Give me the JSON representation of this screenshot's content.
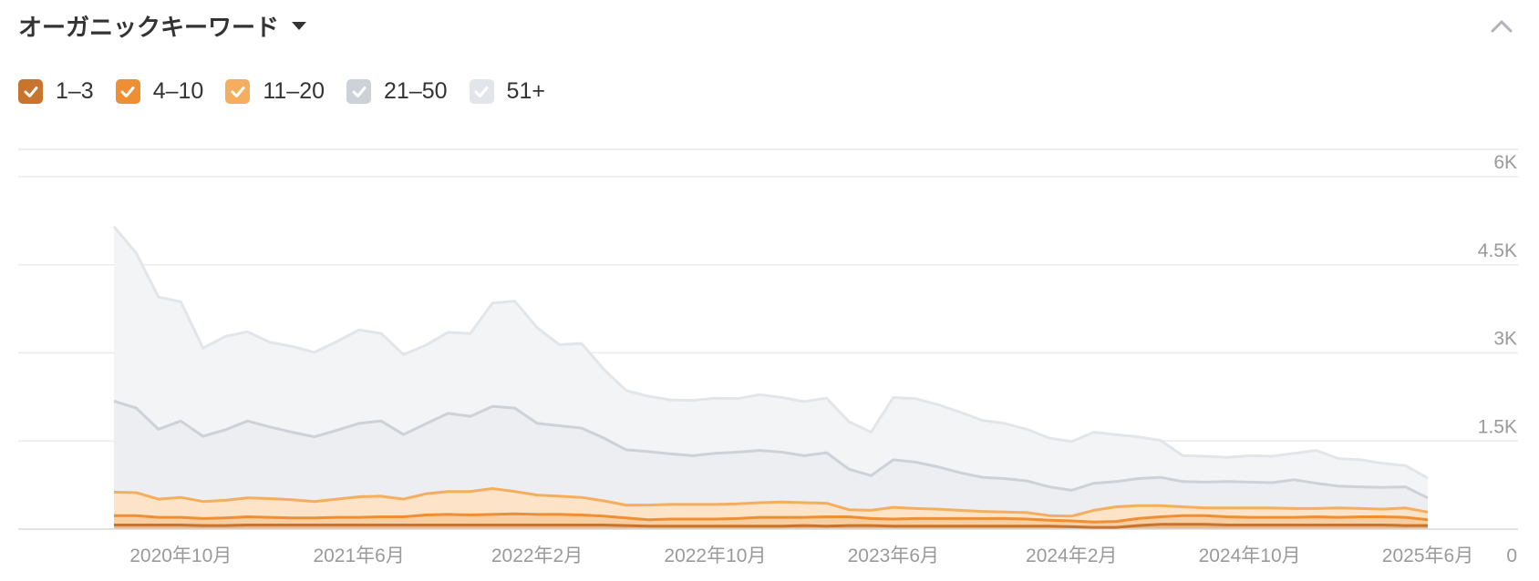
{
  "header": {
    "title": "オーガニックキーワード",
    "dropdown_icon": "caret-down-icon",
    "collapse_icon": "chevron-up-icon"
  },
  "legend": [
    {
      "label": "1–3",
      "color": "#c8732e",
      "checked": true
    },
    {
      "label": "4–10",
      "color": "#ee8f33",
      "checked": true
    },
    {
      "label": "11–20",
      "color": "#f5ae5e",
      "checked": true
    },
    {
      "label": "21–50",
      "color": "#cdd2d8",
      "checked": true
    },
    {
      "label": "51+",
      "color": "#e2e5e9",
      "checked": true
    }
  ],
  "chart_data": {
    "type": "area",
    "stacked": true,
    "x": [
      "2020-07",
      "2020-08",
      "2020-09",
      "2020-10",
      "2020-11",
      "2020-12",
      "2021-01",
      "2021-02",
      "2021-03",
      "2021-04",
      "2021-05",
      "2021-06",
      "2021-07",
      "2021-08",
      "2021-09",
      "2021-10",
      "2021-11",
      "2021-12",
      "2022-01",
      "2022-02",
      "2022-03",
      "2022-04",
      "2022-05",
      "2022-06",
      "2022-07",
      "2022-08",
      "2022-09",
      "2022-10",
      "2022-11",
      "2022-12",
      "2023-01",
      "2023-02",
      "2023-03",
      "2023-04",
      "2023-05",
      "2023-06",
      "2023-07",
      "2023-08",
      "2023-09",
      "2023-10",
      "2023-11",
      "2023-12",
      "2024-01",
      "2024-02",
      "2024-03",
      "2024-04",
      "2024-05",
      "2024-06",
      "2024-07",
      "2024-08",
      "2024-09",
      "2024-10",
      "2024-11",
      "2024-12",
      "2025-01",
      "2025-02",
      "2025-03",
      "2025-04",
      "2025-05",
      "2025-06"
    ],
    "x_tick_labels": [
      {
        "x": "2020-10",
        "label": "2020年10月"
      },
      {
        "x": "2021-06",
        "label": "2021年6月"
      },
      {
        "x": "2022-02",
        "label": "2022年2月"
      },
      {
        "x": "2022-10",
        "label": "2022年10月"
      },
      {
        "x": "2023-06",
        "label": "2023年6月"
      },
      {
        "x": "2024-02",
        "label": "2024年2月"
      },
      {
        "x": "2024-10",
        "label": "2024年10月"
      },
      {
        "x": "2025-06",
        "label": "2025年6月"
      }
    ],
    "y_ticks": [
      {
        "value": 0,
        "label": "0"
      },
      {
        "value": 1500,
        "label": "1.5K"
      },
      {
        "value": 3000,
        "label": "3K"
      },
      {
        "value": 4500,
        "label": "4.5K"
      },
      {
        "value": 6000,
        "label": "6K"
      }
    ],
    "ylim": [
      0,
      6000
    ],
    "y_axis_position": "right",
    "grid": true,
    "series_cumulative": [
      {
        "name": "1–3",
        "color": "#c8732e",
        "values": [
          70,
          70,
          70,
          70,
          60,
          60,
          70,
          70,
          70,
          70,
          70,
          70,
          70,
          70,
          70,
          70,
          70,
          70,
          70,
          70,
          70,
          70,
          70,
          60,
          50,
          50,
          50,
          50,
          50,
          50,
          50,
          60,
          50,
          60,
          60,
          50,
          50,
          50,
          50,
          50,
          50,
          50,
          50,
          40,
          30,
          30,
          60,
          80,
          80,
          80,
          70,
          70,
          70,
          70,
          70,
          70,
          70,
          70,
          60,
          60
        ]
      },
      {
        "name": "4–10",
        "color": "#ee8f33",
        "values": [
          230,
          230,
          200,
          200,
          180,
          190,
          210,
          200,
          190,
          190,
          200,
          200,
          210,
          210,
          240,
          250,
          240,
          250,
          260,
          250,
          250,
          240,
          220,
          190,
          160,
          170,
          170,
          170,
          180,
          200,
          200,
          200,
          210,
          210,
          180,
          170,
          180,
          180,
          180,
          180,
          180,
          170,
          150,
          140,
          120,
          130,
          180,
          210,
          230,
          230,
          210,
          200,
          200,
          200,
          210,
          200,
          210,
          210,
          200,
          160
        ]
      },
      {
        "name": "11–20",
        "color": "#f5ae5e",
        "values": [
          630,
          620,
          510,
          540,
          470,
          490,
          530,
          520,
          500,
          470,
          510,
          550,
          560,
          510,
          600,
          640,
          640,
          690,
          640,
          580,
          560,
          540,
          480,
          410,
          410,
          420,
          420,
          420,
          430,
          450,
          460,
          450,
          440,
          330,
          320,
          370,
          350,
          340,
          320,
          300,
          290,
          280,
          230,
          220,
          320,
          380,
          400,
          400,
          380,
          360,
          360,
          360,
          360,
          350,
          350,
          360,
          350,
          340,
          360,
          290
        ]
      },
      {
        "name": "21–50",
        "color": "#cdd2d8",
        "values": [
          2180,
          2060,
          1700,
          1840,
          1580,
          1690,
          1840,
          1740,
          1650,
          1570,
          1680,
          1800,
          1840,
          1610,
          1790,
          1970,
          1920,
          2090,
          2060,
          1800,
          1760,
          1720,
          1550,
          1350,
          1320,
          1280,
          1250,
          1290,
          1310,
          1340,
          1310,
          1250,
          1300,
          1020,
          910,
          1180,
          1140,
          1060,
          960,
          880,
          860,
          820,
          720,
          660,
          780,
          810,
          860,
          880,
          810,
          800,
          810,
          800,
          790,
          840,
          780,
          730,
          720,
          710,
          720,
          530
        ]
      },
      {
        "name": "51+",
        "color": "#e2e5e9",
        "values": [
          5150,
          4700,
          3950,
          3870,
          3080,
          3280,
          3360,
          3180,
          3110,
          3010,
          3190,
          3390,
          3330,
          2970,
          3130,
          3350,
          3330,
          3850,
          3880,
          3430,
          3140,
          3160,
          2720,
          2360,
          2260,
          2200,
          2190,
          2230,
          2220,
          2290,
          2240,
          2170,
          2230,
          1830,
          1650,
          2240,
          2220,
          2120,
          1990,
          1850,
          1800,
          1700,
          1550,
          1490,
          1650,
          1610,
          1570,
          1510,
          1250,
          1240,
          1220,
          1250,
          1240,
          1290,
          1340,
          1200,
          1180,
          1120,
          1080,
          870
        ]
      }
    ]
  }
}
